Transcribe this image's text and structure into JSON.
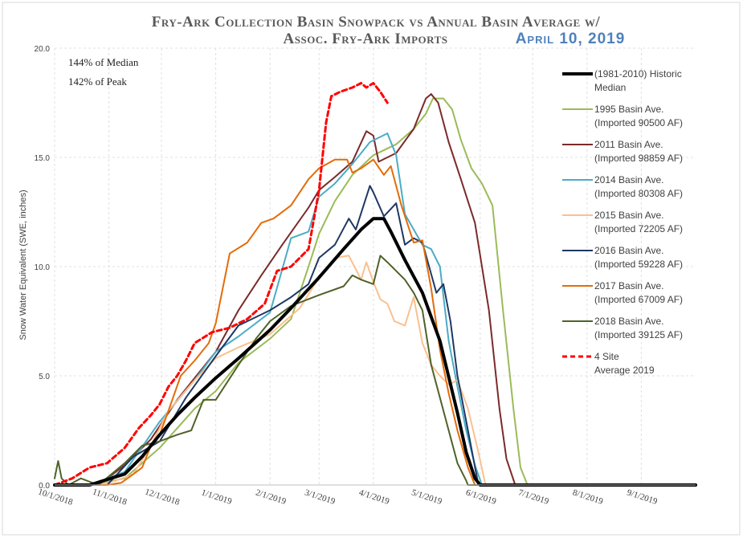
{
  "chart_data": {
    "type": "line",
    "title_line1": "Fry-Ark Collection Basin Snowpack vs Annual Basin Average w/",
    "title_line2": "Assoc. Fry-Ark Imports",
    "date_label": "April 10, 2019",
    "ylabel": "Snow Water Equivalent (SWE, inches)",
    "ylim": [
      0,
      20
    ],
    "yticks": [
      "0.0",
      "5.0",
      "10.0",
      "15.0",
      "20.0"
    ],
    "xlim": [
      0,
      366
    ],
    "xticks": [
      {
        "day": 0,
        "label": "10/1/2018"
      },
      {
        "day": 31,
        "label": "11/1/2018"
      },
      {
        "day": 61,
        "label": "12/1/2018"
      },
      {
        "day": 92,
        "label": "1/1/2019"
      },
      {
        "day": 123,
        "label": "2/1/2019"
      },
      {
        "day": 151,
        "label": "3/1/2019"
      },
      {
        "day": 182,
        "label": "4/1/2019"
      },
      {
        "day": 212,
        "label": "5/1/2019"
      },
      {
        "day": 243,
        "label": "6/1/2019"
      },
      {
        "day": 273,
        "label": "7/1/2019"
      },
      {
        "day": 304,
        "label": "8/1/2019"
      },
      {
        "day": 335,
        "label": "9/1/2019"
      }
    ],
    "annotations": [
      "144% of Median",
      "142% of Peak"
    ],
    "series": [
      {
        "name": "median",
        "label1": "(1981-2010) Historic",
        "label2": "Median",
        "color": "#000000",
        "width": 4,
        "dash": "",
        "x": [
          0,
          20,
          40,
          50,
          60,
          70,
          80,
          92,
          105,
          123,
          135,
          151,
          165,
          175,
          182,
          188,
          192,
          200,
          210,
          220,
          230,
          235,
          240,
          243,
          250,
          366
        ],
        "y": [
          0,
          0,
          0.5,
          1.3,
          2.3,
          3.2,
          4.0,
          4.9,
          5.8,
          7.1,
          8.1,
          9.5,
          10.8,
          11.7,
          12.2,
          12.2,
          11.6,
          10.3,
          8.8,
          6.6,
          3.3,
          1.5,
          0.3,
          0,
          0,
          0
        ]
      },
      {
        "name": "1995",
        "label1": "1995 Basin Ave.",
        "label2": "(Imported 90500 AF)",
        "color": "#9bbb59",
        "width": 2,
        "dash": "",
        "x": [
          0,
          20,
          40,
          60,
          80,
          92,
          105,
          123,
          135,
          145,
          151,
          160,
          170,
          182,
          195,
          205,
          212,
          216,
          222,
          227,
          232,
          238,
          244,
          250,
          256,
          262,
          266,
          270,
          366
        ],
        "y": [
          0,
          0,
          0.3,
          1.7,
          3.5,
          4.3,
          5.6,
          6.7,
          7.6,
          10.0,
          11.5,
          13.0,
          14.2,
          15.1,
          15.6,
          16.3,
          17.0,
          17.7,
          17.7,
          17.2,
          15.8,
          14.5,
          13.8,
          12.8,
          8.0,
          3.5,
          0.8,
          0,
          0
        ]
      },
      {
        "name": "2011",
        "label1": "2011 Basin Ave.",
        "label2": "(Imported 98859 AF)",
        "color": "#7b2a2a",
        "width": 2,
        "dash": "",
        "x": [
          0,
          25,
          40,
          55,
          70,
          85,
          92,
          105,
          118,
          130,
          145,
          151,
          160,
          170,
          178,
          182,
          185,
          195,
          205,
          212,
          215,
          219,
          225,
          232,
          240,
          248,
          254,
          258,
          263,
          366
        ],
        "y": [
          0,
          0,
          0.9,
          2.1,
          3.9,
          5.4,
          6.1,
          8.0,
          9.6,
          11.0,
          12.7,
          13.5,
          14.1,
          14.8,
          16.2,
          16.0,
          14.8,
          15.2,
          16.3,
          17.7,
          17.9,
          17.5,
          15.7,
          14.0,
          12.0,
          8.0,
          3.5,
          1.2,
          0,
          0
        ]
      },
      {
        "name": "2014",
        "label1": "2014 Basin Ave.",
        "label2": "(Imported 80308 AF)",
        "color": "#4bacc6",
        "width": 2,
        "dash": "",
        "x": [
          0,
          20,
          40,
          60,
          80,
          92,
          105,
          123,
          135,
          145,
          151,
          160,
          170,
          180,
          185,
          190,
          195,
          200,
          205,
          210,
          215,
          220,
          225,
          230,
          235,
          240,
          244,
          366
        ],
        "y": [
          0,
          0,
          0.6,
          2.9,
          4.8,
          6.1,
          6.8,
          7.9,
          11.3,
          11.6,
          13.2,
          13.8,
          14.7,
          15.7,
          15.9,
          16.1,
          15.1,
          12.4,
          11.7,
          11.0,
          10.8,
          10.0,
          6.6,
          4.5,
          2.5,
          0.9,
          0,
          0
        ]
      },
      {
        "name": "2015",
        "label1": "2015 Basin Ave.",
        "label2": "(Imported 72205 AF)",
        "color": "#fac08f",
        "width": 2,
        "dash": "",
        "x": [
          0,
          25,
          35,
          45,
          55,
          65,
          80,
          92,
          105,
          123,
          140,
          151,
          160,
          168,
          175,
          178,
          182,
          186,
          190,
          194,
          200,
          205,
          210,
          215,
          220,
          225,
          230,
          236,
          242,
          246,
          366
        ],
        "y": [
          0,
          0,
          0.2,
          0.5,
          1.8,
          3.4,
          4.8,
          5.8,
          6.3,
          6.9,
          8.1,
          9.5,
          10.4,
          10.5,
          9.4,
          10.2,
          9.3,
          8.5,
          8.3,
          7.5,
          7.3,
          8.6,
          6.5,
          5.5,
          5.0,
          4.6,
          4.8,
          3.5,
          1.5,
          0,
          0
        ]
      },
      {
        "name": "2016",
        "label1": "2016 Basin Ave.",
        "label2": "(Imported 59228 AF)",
        "color": "#1f3864",
        "width": 2,
        "dash": "",
        "x": [
          0,
          30,
          45,
          60,
          75,
          92,
          105,
          123,
          135,
          145,
          151,
          160,
          168,
          172,
          180,
          182,
          188,
          195,
          200,
          205,
          210,
          218,
          222,
          226,
          230,
          236,
          242,
          366
        ],
        "y": [
          0,
          0,
          1.3,
          2.0,
          4.0,
          5.9,
          7.3,
          8.0,
          8.6,
          9.2,
          10.4,
          11.0,
          12.2,
          11.7,
          13.7,
          13.4,
          12.3,
          12.9,
          11.0,
          11.3,
          11.1,
          8.8,
          9.2,
          7.5,
          5.0,
          2.5,
          0,
          0
        ]
      },
      {
        "name": "2017",
        "label1": "2017 Basin Ave.",
        "label2": "(Imported 67009 AF)",
        "color": "#e36c09",
        "width": 2,
        "dash": "",
        "x": [
          0,
          30,
          38,
          45,
          50,
          55,
          60,
          65,
          72,
          80,
          88,
          92,
          100,
          110,
          118,
          125,
          135,
          145,
          151,
          160,
          167,
          170,
          175,
          182,
          188,
          192,
          198,
          205,
          210,
          215,
          220,
          225,
          230,
          236,
          240,
          366
        ],
        "y": [
          0,
          0,
          0.1,
          0.5,
          0.8,
          1.8,
          2.3,
          3.4,
          5.0,
          5.7,
          6.5,
          7.4,
          10.6,
          11.1,
          12.0,
          12.2,
          12.8,
          14.0,
          14.5,
          14.9,
          14.9,
          14.3,
          14.5,
          14.9,
          14.2,
          14.6,
          12.8,
          11.1,
          11.2,
          9.0,
          6.2,
          4.2,
          2.5,
          0.8,
          0,
          0
        ]
      },
      {
        "name": "2018",
        "label1": "2018 Basin Ave.",
        "label2": "(Imported 39125 AF)",
        "color": "#4f6228",
        "width": 2,
        "dash": "",
        "x": [
          0,
          2,
          4,
          8,
          15,
          25,
          40,
          50,
          60,
          70,
          78,
          85,
          92,
          105,
          115,
          123,
          135,
          151,
          165,
          170,
          175,
          182,
          186,
          190,
          195,
          200,
          205,
          210,
          215,
          220,
          225,
          230,
          235,
          236,
          366
        ],
        "y": [
          0.3,
          1.1,
          0.3,
          0,
          0.3,
          0,
          1.0,
          1.8,
          2.0,
          2.3,
          2.5,
          3.9,
          3.9,
          5.5,
          6.7,
          7.5,
          8.2,
          8.7,
          9.1,
          9.6,
          9.4,
          9.2,
          10.5,
          10.2,
          9.8,
          9.4,
          8.8,
          8.0,
          5.5,
          4.0,
          2.5,
          1.0,
          0.2,
          0,
          0
        ]
      },
      {
        "name": "avg2019",
        "label1": "4 Site",
        "label2": "Average 2019",
        "color": "#ff0000",
        "width": 3,
        "dash": "6,4",
        "x": [
          0,
          10,
          20,
          30,
          40,
          48,
          55,
          60,
          65,
          70,
          75,
          80,
          90,
          100,
          110,
          120,
          127,
          135,
          145,
          151,
          155,
          158,
          163,
          170,
          175,
          178,
          182,
          186,
          190
        ],
        "y": [
          0,
          0.3,
          0.8,
          1.0,
          1.7,
          2.6,
          3.2,
          3.7,
          4.5,
          5.0,
          5.7,
          6.5,
          7.0,
          7.2,
          7.6,
          8.3,
          9.8,
          10.0,
          10.8,
          13.5,
          16.6,
          17.8,
          18.0,
          18.2,
          18.4,
          18.2,
          18.4,
          18.0,
          17.5
        ]
      }
    ]
  }
}
